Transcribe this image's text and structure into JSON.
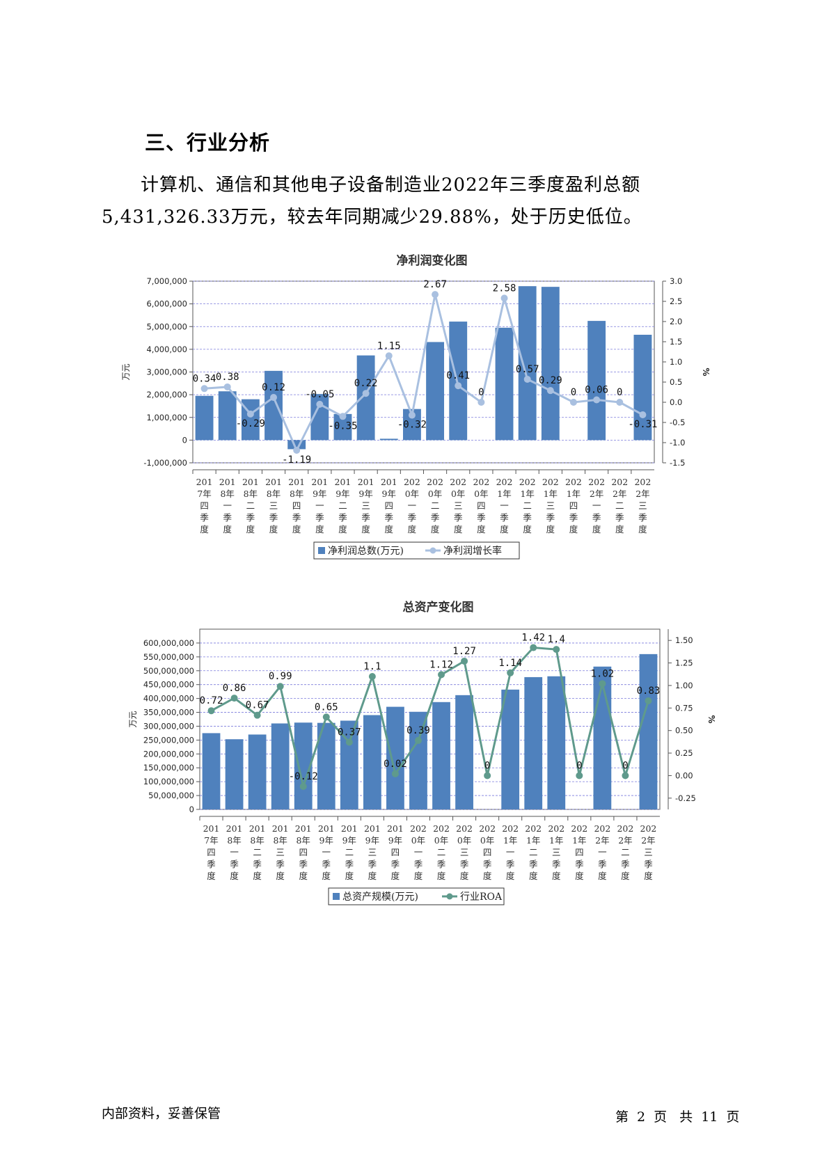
{
  "section": {
    "heading": "三、行业分析"
  },
  "paragraph": {
    "line1": "计算机、通信和其他电子设备制造业2022年三季度盈利总额",
    "line2": "5,431,326.33万元，较去年同期减少29.88%，处于历史低位。"
  },
  "chart_data": [
    {
      "type": "bar",
      "title": "净利润变化图",
      "ylabel": "万元",
      "y2label": "%",
      "categories": [
        "2017年四季度",
        "2018年一季度",
        "2018年二季度",
        "2018年三季度",
        "2018年四季度",
        "2019年一季度",
        "2019年二季度",
        "2019年三季度",
        "2019年四季度",
        "2020年一季度",
        "2020年二季度",
        "2020年三季度",
        "2020年四季度",
        "2021年一季度",
        "2021年二季度",
        "2021年三季度",
        "2021年四季度",
        "2022年一季度",
        "2022年二季度",
        "2022年三季度"
      ],
      "category_lines": [
        [
          "201",
          "7年",
          "四",
          "季",
          "度"
        ],
        [
          "201",
          "8年",
          "一",
          "季",
          "度"
        ],
        [
          "201",
          "8年",
          "二",
          "季",
          "度"
        ],
        [
          "201",
          "8年",
          "三",
          "季",
          "度"
        ],
        [
          "201",
          "8年",
          "四",
          "季",
          "度"
        ],
        [
          "201",
          "9年",
          "一",
          "季",
          "度"
        ],
        [
          "201",
          "9年",
          "二",
          "季",
          "度"
        ],
        [
          "201",
          "9年",
          "三",
          "季",
          "度"
        ],
        [
          "201",
          "9年",
          "四",
          "季",
          "度"
        ],
        [
          "202",
          "0年",
          "一",
          "季",
          "度"
        ],
        [
          "202",
          "0年",
          "二",
          "季",
          "度"
        ],
        [
          "202",
          "0年",
          "三",
          "季",
          "度"
        ],
        [
          "202",
          "0年",
          "四",
          "季",
          "度"
        ],
        [
          "202",
          "1年",
          "一",
          "季",
          "度"
        ],
        [
          "202",
          "1年",
          "二",
          "季",
          "度"
        ],
        [
          "202",
          "1年",
          "三",
          "季",
          "度"
        ],
        [
          "202",
          "1年",
          "四",
          "季",
          "度"
        ],
        [
          "202",
          "2年",
          "一",
          "季",
          "度"
        ],
        [
          "202",
          "2年",
          "二",
          "季",
          "度"
        ],
        [
          "202",
          "2年",
          "三",
          "季",
          "度"
        ]
      ],
      "series": [
        {
          "name": "净利润总数(万元)",
          "type": "bar",
          "axis": "left",
          "values": [
            1950000,
            2150000,
            1800000,
            3050000,
            -400000,
            2030000,
            1150000,
            3730000,
            60000,
            1370000,
            4320000,
            5220000,
            0,
            4950000,
            6780000,
            6750000,
            0,
            5250000,
            0,
            4640000
          ]
        },
        {
          "name": "净利润增长率",
          "type": "line",
          "axis": "right",
          "values": [
            0.34,
            0.38,
            -0.29,
            0.12,
            -1.19,
            -0.05,
            -0.35,
            0.22,
            1.15,
            -0.32,
            2.67,
            0.41,
            0,
            2.58,
            0.57,
            0.29,
            0,
            0.06,
            0,
            -0.31
          ],
          "labels": [
            "0.34",
            "0.38",
            "-0.29",
            "0.12",
            "-1.19",
            "-0.05",
            "-0.35",
            "0.22",
            "1.15",
            "-0.32",
            "2.67",
            "0.41",
            "0",
            "2.58",
            "0.57",
            "0.29",
            "0",
            "0.06",
            "0",
            "-0.31"
          ]
        }
      ],
      "ylim": [
        -1000000,
        7000000
      ],
      "y2lim": [
        -1.5,
        3.0
      ],
      "yticks": [
        "7,000,000",
        "6,000,000",
        "5,000,000",
        "4,000,000",
        "3,000,000",
        "2,000,000",
        "1,000,000",
        "0",
        "-1,000,000"
      ],
      "ytick_values": [
        7000000,
        6000000,
        5000000,
        4000000,
        3000000,
        2000000,
        1000000,
        0,
        -1000000
      ],
      "y2ticks": [
        "3.0",
        "2.5",
        "2.0",
        "1.5",
        "1.0",
        "0.5",
        "0.0",
        "-0.5",
        "-1.0",
        "-1.5"
      ],
      "y2tick_values": [
        3.0,
        2.5,
        2.0,
        1.5,
        1.0,
        0.5,
        0.0,
        -0.5,
        -1.0,
        -1.5
      ],
      "grid": true,
      "legend_position": "bottom",
      "colors": {
        "bar": "#4f81bd",
        "line": "#a9c0e0"
      }
    },
    {
      "type": "bar",
      "title": "总资产变化图",
      "ylabel": "万元",
      "y2label": "%",
      "categories": [
        "2017年四季度",
        "2018年一季度",
        "2018年二季度",
        "2018年三季度",
        "2018年四季度",
        "2019年一季度",
        "2019年二季度",
        "2019年三季度",
        "2019年四季度",
        "2020年一季度",
        "2020年二季度",
        "2020年三季度",
        "2020年四季度",
        "2021年一季度",
        "2021年二季度",
        "2021年三季度",
        "2021年四季度",
        "2022年一季度",
        "2022年二季度",
        "2022年三季度"
      ],
      "category_lines": [
        [
          "201",
          "7年",
          "四",
          "季",
          "度"
        ],
        [
          "201",
          "8年",
          "一",
          "季",
          "度"
        ],
        [
          "201",
          "8年",
          "二",
          "季",
          "度"
        ],
        [
          "201",
          "8年",
          "三",
          "季",
          "度"
        ],
        [
          "201",
          "8年",
          "四",
          "季",
          "度"
        ],
        [
          "201",
          "9年",
          "一",
          "季",
          "度"
        ],
        [
          "201",
          "9年",
          "二",
          "季",
          "度"
        ],
        [
          "201",
          "9年",
          "三",
          "季",
          "度"
        ],
        [
          "201",
          "9年",
          "四",
          "季",
          "度"
        ],
        [
          "202",
          "0年",
          "一",
          "季",
          "度"
        ],
        [
          "202",
          "0年",
          "二",
          "季",
          "度"
        ],
        [
          "202",
          "0年",
          "三",
          "季",
          "度"
        ],
        [
          "202",
          "0年",
          "四",
          "季",
          "度"
        ],
        [
          "202",
          "1年",
          "一",
          "季",
          "度"
        ],
        [
          "202",
          "1年",
          "二",
          "季",
          "度"
        ],
        [
          "202",
          "1年",
          "三",
          "季",
          "度"
        ],
        [
          "202",
          "1年",
          "四",
          "季",
          "度"
        ],
        [
          "202",
          "2年",
          "一",
          "季",
          "度"
        ],
        [
          "202",
          "2年",
          "二",
          "季",
          "度"
        ],
        [
          "202",
          "2年",
          "三",
          "季",
          "度"
        ]
      ],
      "series": [
        {
          "name": "总资产规模(万元)",
          "type": "bar",
          "axis": "left",
          "values": [
            275000000,
            253000000,
            270000000,
            310000000,
            313000000,
            312000000,
            320000000,
            340000000,
            370000000,
            352000000,
            387000000,
            412000000,
            0,
            432000000,
            477000000,
            480000000,
            0,
            515000000,
            0,
            560000000
          ]
        },
        {
          "name": "行业ROA",
          "type": "line",
          "axis": "right",
          "values": [
            0.72,
            0.86,
            0.67,
            0.99,
            -0.12,
            0.65,
            0.37,
            1.1,
            0.02,
            0.39,
            1.12,
            1.27,
            0,
            1.14,
            1.42,
            1.4,
            0,
            1.02,
            0,
            0.83
          ],
          "labels": [
            "0.72",
            "0.86",
            "0.67",
            "0.99",
            "-0.12",
            "0.65",
            "0.37",
            "1.1",
            "0.02",
            "0.39",
            "1.12",
            "1.27",
            "0",
            "1.14",
            "1.42",
            "1.4",
            "0",
            "1.02",
            "0",
            "0.83"
          ]
        }
      ],
      "ylim": [
        0,
        650000000
      ],
      "y2lim": [
        -0.375,
        1.625
      ],
      "yticks": [
        "600,000,000",
        "550,000,000",
        "500,000,000",
        "450,000,000",
        "400,000,000",
        "350,000,000",
        "300,000,000",
        "250,000,000",
        "200,000,000",
        "150,000,000",
        "100,000,000",
        "50,000,000",
        "0"
      ],
      "ytick_values": [
        600000000,
        550000000,
        500000000,
        450000000,
        400000000,
        350000000,
        300000000,
        250000000,
        200000000,
        150000000,
        100000000,
        50000000,
        0
      ],
      "y2ticks": [
        "1.50",
        "1.25",
        "1.00",
        "0.75",
        "0.50",
        "0.25",
        "0.00",
        "-0.25"
      ],
      "y2tick_values": [
        1.5,
        1.25,
        1.0,
        0.75,
        0.5,
        0.25,
        0.0,
        -0.25
      ],
      "grid": true,
      "legend_position": "bottom",
      "colors": {
        "bar": "#4f81bd",
        "line": "#5f9a8c"
      }
    }
  ],
  "footer": {
    "left": "内部资料，妥善保管",
    "page_prefix": "第",
    "page_number": "2",
    "page_word": "页",
    "total_prefix": "共",
    "total_pages": "11",
    "total_word": "页"
  }
}
